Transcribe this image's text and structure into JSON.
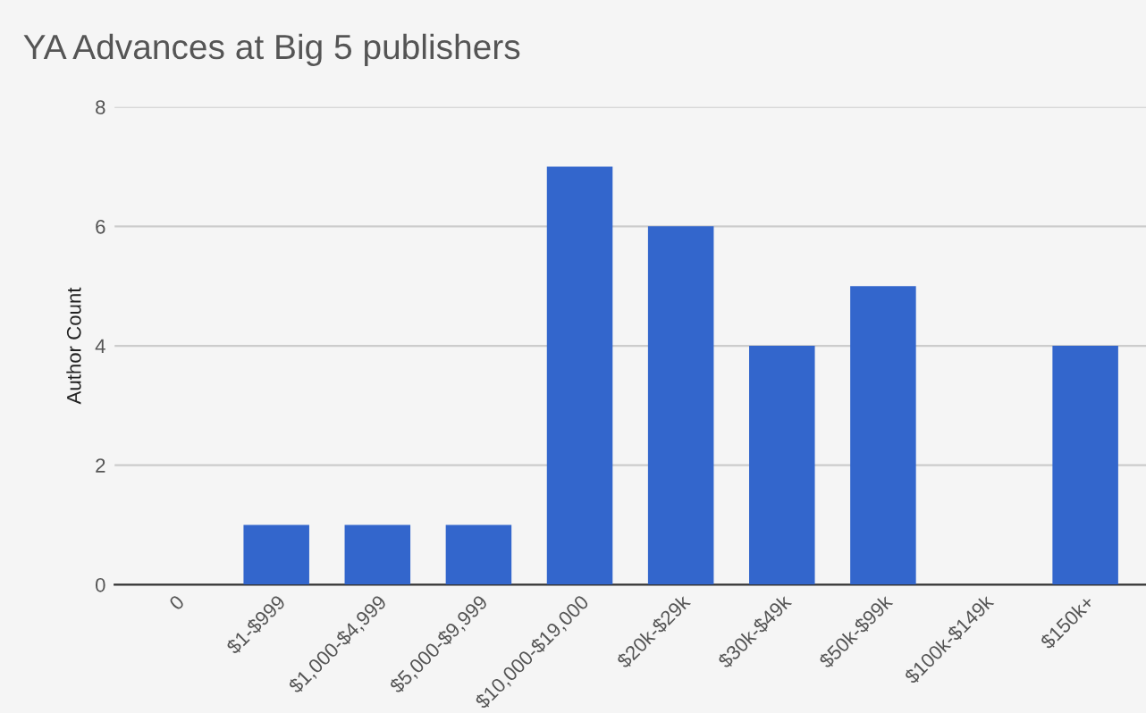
{
  "chart_data": {
    "type": "bar",
    "title": "YA Advances at Big 5 publishers",
    "ylabel": "Author Count",
    "categories": [
      "0",
      "$1-$999",
      "$1,000-$4,999",
      "$5,000-$9,999",
      "$10,000-$19,000",
      "$20k-$29k",
      "$30k-$49k",
      "$50k-$99k",
      "$100k-$149k",
      "$150k+"
    ],
    "values": [
      0,
      1,
      1,
      1,
      7,
      6,
      4,
      5,
      0,
      4
    ],
    "color": "#3366cc",
    "ylim": [
      0,
      8
    ],
    "yticks": [
      0,
      2,
      4,
      6,
      8
    ],
    "grid": "y"
  }
}
